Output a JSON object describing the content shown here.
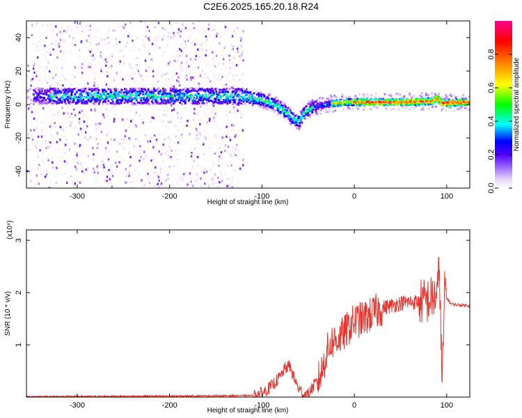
{
  "title": "C2E6.2025.165.20.18.R24",
  "chart_data": [
    {
      "type": "heatmap",
      "xlabel": "Height of straight line (km)",
      "ylabel": "Frequency (Hz)",
      "xlim": [
        -355,
        125
      ],
      "ylim": [
        -50,
        50
      ],
      "xticks": [
        -300,
        -200,
        -100,
        0,
        100
      ],
      "yticks": [
        -40,
        -20,
        0,
        20,
        40
      ],
      "colorbar": {
        "label": "Normalized spectral amplitude",
        "range": [
          0,
          1
        ],
        "ticks": [
          "0.0",
          "0.2",
          "0.4",
          "0.6",
          "0.8"
        ],
        "colors": [
          "#ffffff",
          "#d9c6f5",
          "#7a00ff",
          "#0000ff",
          "#00ffff",
          "#00ff00",
          "#ffff00",
          "#ff8000",
          "#ff0000",
          "#ff0080"
        ]
      },
      "ridge": [
        {
          "x": -340,
          "y": 5
        },
        {
          "x": -300,
          "y": 5
        },
        {
          "x": -250,
          "y": 5
        },
        {
          "x": -200,
          "y": 5
        },
        {
          "x": -150,
          "y": 5
        },
        {
          "x": -120,
          "y": 5
        },
        {
          "x": -100,
          "y": 3
        },
        {
          "x": -90,
          "y": 1
        },
        {
          "x": -80,
          "y": -2
        },
        {
          "x": -70,
          "y": -6
        },
        {
          "x": -65,
          "y": -9
        },
        {
          "x": -60,
          "y": -10
        },
        {
          "x": -55,
          "y": -6
        },
        {
          "x": -50,
          "y": -3
        },
        {
          "x": -40,
          "y": -1
        },
        {
          "x": -30,
          "y": 0
        },
        {
          "x": -20,
          "y": 1
        },
        {
          "x": 0,
          "y": 1.5
        },
        {
          "x": 50,
          "y": 1.5
        },
        {
          "x": 85,
          "y": 2
        },
        {
          "x": 90,
          "y": 4
        },
        {
          "x": 95,
          "y": 1
        },
        {
          "x": 125,
          "y": 1.5
        }
      ]
    },
    {
      "type": "line",
      "xlabel": "Height of straight line (km)",
      "ylabel": "SNR (10 * v/v)",
      "yunit": "(x10⁴)",
      "xlim": [
        -355,
        125
      ],
      "ylim": [
        0,
        3.2
      ],
      "xticks": [
        -300,
        -200,
        -100,
        0,
        100
      ],
      "yticks": [
        1,
        2,
        3
      ],
      "color": "#e8322c",
      "series": [
        {
          "x": [
            -355,
            -200,
            -110,
            -100,
            -90,
            -80,
            -75,
            -70,
            -65,
            -60,
            -55,
            -50,
            -45,
            -40,
            -35,
            -30,
            -25,
            -20,
            -15,
            -10,
            0,
            10,
            20,
            30,
            40,
            50,
            60,
            70,
            80,
            85,
            90,
            92,
            95,
            98,
            100,
            105,
            110,
            125
          ],
          "y": [
            0.01,
            0.02,
            0.03,
            0.08,
            0.2,
            0.4,
            0.55,
            0.6,
            0.35,
            0.15,
            0.05,
            0.05,
            0.2,
            0.3,
            0.5,
            0.85,
            1.05,
            1.1,
            1.15,
            1.25,
            1.45,
            1.5,
            1.6,
            1.7,
            1.75,
            1.8,
            1.82,
            1.82,
            1.85,
            1.9,
            1.95,
            2.6,
            0.2,
            2.1,
            1.9,
            1.78,
            1.77,
            1.75
          ]
        }
      ]
    }
  ]
}
